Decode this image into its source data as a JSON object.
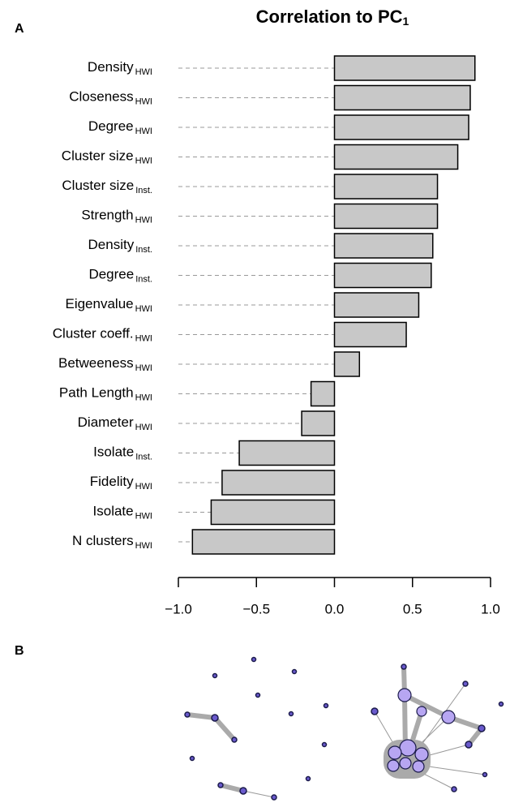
{
  "chart_data": {
    "type": "bar",
    "orientation": "horizontal",
    "panel_labels": [
      "A",
      "B"
    ],
    "title": "Correlation to PC",
    "title_subscript": "1",
    "categories": [
      "Density",
      "Closeness",
      "Degree",
      "Cluster size",
      "Cluster size",
      "Strength",
      "Density",
      "Degree",
      "Eigenvalue",
      "Cluster coeff.",
      "Betweeness",
      "Path Length",
      "Diameter",
      "Isolate",
      "Fidelity",
      "Isolate",
      "N clusters"
    ],
    "subscripts": [
      "HWI",
      "HWI",
      "HWI",
      "HWI",
      "Inst.",
      "HWI",
      "Inst.",
      "Inst.",
      "HWI",
      "HWI",
      "HWI",
      "HWI",
      "HWI",
      "Inst.",
      "HWI",
      "HWI",
      "HWI"
    ],
    "values": [
      0.9,
      0.87,
      0.86,
      0.79,
      0.66,
      0.66,
      0.63,
      0.62,
      0.54,
      0.46,
      0.16,
      -0.15,
      -0.21,
      -0.61,
      -0.72,
      -0.79,
      -0.91
    ],
    "color": "#c8c8c8",
    "xlim": [
      -1,
      1
    ],
    "xticks": [
      {
        "value": -1,
        "label": "−1.0"
      },
      {
        "value": -0.5,
        "label": "−0.5"
      },
      {
        "value": 0,
        "label": "0.0"
      },
      {
        "value": 0.5,
        "label": "0.5"
      },
      {
        "value": 1,
        "label": "1.0"
      }
    ]
  }
}
